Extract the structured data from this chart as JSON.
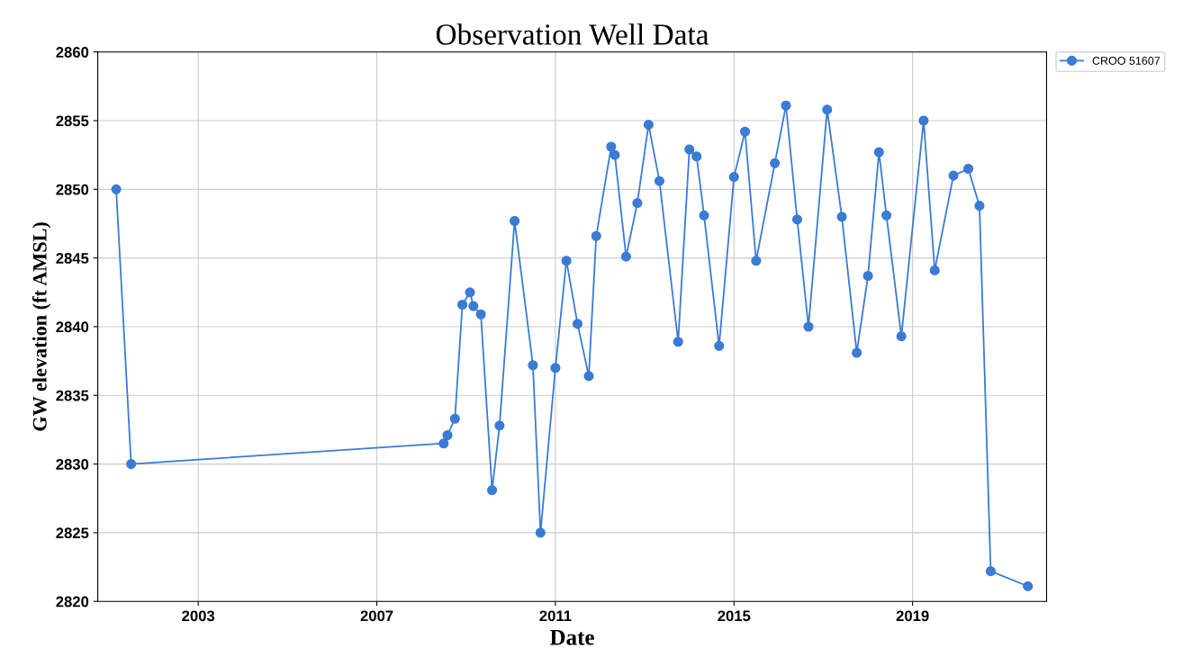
{
  "chart_data": {
    "type": "line",
    "title": "Observation Well Data",
    "xlabel": "Date",
    "ylabel": "GW elevation (ft AMSL)",
    "x": [
      "2001-03",
      "2001-07",
      "2008-07",
      "2008-08",
      "2008-10",
      "2008-12",
      "2009-02",
      "2009-03",
      "2009-05",
      "2009-08",
      "2009-10",
      "2010-02",
      "2010-07",
      "2010-09",
      "2011-01",
      "2011-04",
      "2011-07",
      "2011-10",
      "2011-12",
      "2012-04",
      "2012-05",
      "2012-08",
      "2012-11",
      "2013-02",
      "2013-05",
      "2013-10",
      "2014-01",
      "2014-03",
      "2014-05",
      "2014-09",
      "2015-01",
      "2015-04",
      "2015-07",
      "2015-12",
      "2016-03",
      "2016-06",
      "2016-09",
      "2017-02",
      "2017-06",
      "2017-10",
      "2018-01",
      "2018-04",
      "2018-06",
      "2018-10",
      "2019-04",
      "2019-07",
      "2019-12",
      "2020-04",
      "2020-07",
      "2020-10",
      "2021-08"
    ],
    "series": [
      {
        "name": "CROO 51607",
        "color": "#3a7bd5",
        "values": [
          2850.0,
          2830.0,
          2831.5,
          2832.1,
          2833.3,
          2841.6,
          2842.5,
          2841.5,
          2840.9,
          2828.1,
          2832.8,
          2847.7,
          2837.2,
          2825.0,
          2837.0,
          2844.8,
          2840.2,
          2836.4,
          2846.6,
          2853.1,
          2852.5,
          2845.1,
          2849.0,
          2854.7,
          2850.6,
          2838.9,
          2852.9,
          2852.4,
          2848.1,
          2838.6,
          2850.9,
          2854.2,
          2844.8,
          2851.9,
          2856.1,
          2847.8,
          2840.0,
          2855.8,
          2848.0,
          2838.1,
          2843.7,
          2852.7,
          2848.1,
          2839.3,
          2855.0,
          2844.1,
          2851.0,
          2851.5,
          2848.8,
          2822.2,
          2821.1
        ]
      }
    ],
    "xlim": [
      "2000-10",
      "2022-01"
    ],
    "xticks": [
      "2003",
      "2007",
      "2011",
      "2015",
      "2019"
    ],
    "ylim": [
      2820,
      2860
    ],
    "yticks": [
      2820,
      2825,
      2830,
      2835,
      2840,
      2845,
      2850,
      2855,
      2860
    ],
    "grid": true,
    "legend": "top right",
    "marker": "circle",
    "line_style": "solid"
  }
}
